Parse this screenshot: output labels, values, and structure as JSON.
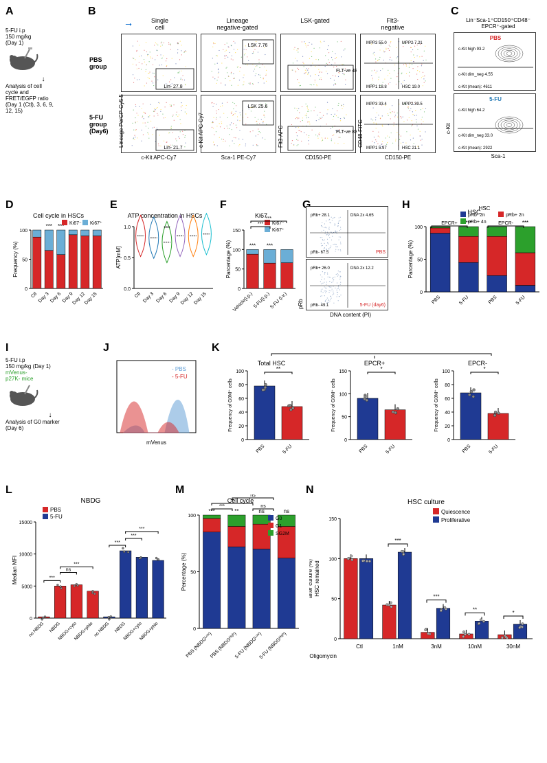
{
  "panelA": {
    "label": "A",
    "treatment": "5-FU i.p\n150 mg/kg\n(Day 1)",
    "analysis": "Analysis of cell\ncycle and\nFRET/EGFP ratio\n(Day 1 (Ctl), 3, 6, 9,\n12, 15)"
  },
  "panelB": {
    "label": "B",
    "headers": [
      "Single\ncell",
      "Lineage\nnegative-gated",
      "LSK-gated",
      "Flt3-\nnegative"
    ],
    "group1": "PBS\ngroup",
    "group2": "5-FU\ngroup\n(Day6)",
    "yaxes": [
      "Lineage PerCP-Cy5.5",
      "c-Kit APC-Cy7",
      "Flt3-APC",
      "CD48-FITC"
    ],
    "xaxes": [
      "c-Kit APC-Cy7",
      "Sca-1 PE-Cy7",
      "CD150-PE",
      "CD150-PE"
    ],
    "gates_pbs": [
      {
        "lin_neg": "Lin-\n27.8"
      },
      {
        "lsk": "LSK\n7.76"
      },
      {
        "flt_ve": "FLT-ve\n48.5"
      },
      {
        "mpp3": "MPP3\n55.0",
        "mpp2": "MPP2\n7.21",
        "mpp1": "MPP1\n18.8",
        "hsc": "HSC\n19.0"
      }
    ],
    "gates_5fu": [
      {
        "lin_neg": "Lin-\n21.7"
      },
      {
        "lsk": "LSK\n25.6"
      },
      {
        "flt_ve": "FLT-ve\n83.7"
      },
      {
        "mpp3": "MPP3\n33.4",
        "mpp2": "MPP2\n39.5",
        "mpp1": "MPP1\n5.97",
        "hsc": "HSC\n21.1"
      }
    ]
  },
  "panelC": {
    "label": "C",
    "title": "Lin⁻Sca-1⁺CD150⁺CD48⁻\nEPCR⁺-gated",
    "yaxis": "c-Kit",
    "xaxis": "Sca-1",
    "pbs": {
      "label": "PBS",
      "high": "c-Kit high\n93.2",
      "dim": "c-Kit dim_neg\n4.55",
      "mean": "c-Kit (mean): 4611"
    },
    "fu": {
      "label": "5-FU",
      "high": "c-Kit high\n64.2",
      "dim": "c-Kit dim_neg\n33.0",
      "mean": "c-Kit (mean): 2922"
    }
  },
  "panelD": {
    "label": "D",
    "title": "Cell cycle in HSCs",
    "ylabel": "Frequency (%)",
    "categories": [
      "Ctl",
      "Day 3",
      "Day 6",
      "Day 9",
      "Day 12",
      "Day 15"
    ],
    "ki67_neg": [
      88,
      65,
      58,
      92,
      90,
      90
    ],
    "ki67_pos": [
      12,
      35,
      42,
      8,
      10,
      10
    ],
    "colors": {
      "neg": "#d62728",
      "pos": "#6baed6"
    },
    "legend": [
      "Ki67⁻",
      "Ki67⁺"
    ],
    "ylim": [
      0,
      100
    ],
    "ytick_step": 50,
    "sig": [
      "",
      "***",
      "***",
      "",
      "",
      ""
    ]
  },
  "panelE": {
    "label": "E",
    "title": "ATP concentration in HSCs",
    "ylabel": "ATP[mM]",
    "categories": [
      "Ctl",
      "Day 3",
      "Day 6",
      "Day 9",
      "Day 12",
      "Day 15"
    ],
    "medians": [
      0.85,
      0.82,
      0.75,
      0.85,
      0.85,
      0.88
    ],
    "colors": [
      "#d62728",
      "#1f77b4",
      "#2ca02c",
      "#9467bd",
      "#ff7f0e",
      "#17becf"
    ],
    "ylim": [
      0,
      1.0
    ],
    "ytick_step": 0.5,
    "sig_pos": 2,
    "sig": "***"
  },
  "panelF": {
    "label": "F",
    "title": "Ki67",
    "ylabel": "Parcentage (%)",
    "categories": [
      "Vehicle(i.p.)",
      "5-FU(i.p.)",
      "5-FU (i.v.)"
    ],
    "ki67_neg": [
      88,
      65,
      66
    ],
    "ki67_pos": [
      12,
      35,
      34
    ],
    "colors": {
      "neg": "#d62728",
      "pos": "#6baed6"
    },
    "legend": [
      "Ki67⁻",
      "Ki67⁺"
    ],
    "ylim": [
      0,
      150
    ],
    "ytick_step": 50,
    "sig": [
      "***",
      "***"
    ]
  },
  "panelG": {
    "label": "G",
    "yaxis": "pRb",
    "xaxis": "DNA content (PI)",
    "pbs": {
      "label": "PBS",
      "prb_pos": "pRb+\n28.1",
      "dna2x": "DNA 2x\n4.65",
      "prb_neg": "pRb-\n67.5"
    },
    "fu": {
      "label": "5-FU (day6)",
      "prb_pos": "pRb+\n26.0",
      "dna2x": "DNA 2x\n12.2",
      "prb_neg": "pRb-\n49.1"
    }
  },
  "panelH": {
    "label": "H",
    "title": "HSC",
    "ylabel": "Parcentage (%)",
    "group_labels": [
      "EPCR+",
      "EPCR-"
    ],
    "categories": [
      "PBS",
      "5-FU",
      "PBS",
      "5-FU"
    ],
    "prb_neg_2n": [
      90,
      45,
      25,
      10
    ],
    "prb_pos_2n": [
      8,
      40,
      60,
      50
    ],
    "prb_pos_4n": [
      2,
      15,
      15,
      40
    ],
    "colors": {
      "neg2n": "#1f3a93",
      "pos2n": "#d62728",
      "pos4n": "#2ca02c"
    },
    "legend": [
      "pRb- 2n",
      "pRb+ 2n",
      "pRb+ 4n"
    ],
    "ylim": [
      0,
      100
    ],
    "ytick_step": 50,
    "sig": [
      "",
      "***",
      "",
      "***"
    ]
  },
  "panelI": {
    "label": "I",
    "treatment": "5-FU i.p\n150 mg/kg (Day 1)",
    "mouse_label": "mVenus-\np27K- mice",
    "mouse_color": "#2ca02c",
    "analysis": "Analysis of G0 marker\n(Day 6)"
  },
  "panelJ": {
    "label": "J",
    "xaxis": "mVenus",
    "legend": [
      "PBS",
      "5-FU"
    ],
    "colors": [
      "#5b9bd5",
      "#d62728"
    ]
  },
  "panelK": {
    "label": "K",
    "titles": [
      "Total HSC",
      "EPCR+",
      "EPCR-"
    ],
    "ylabel": "Frequency of G0M⁺ cells",
    "categories": [
      "PBS",
      "5-FU"
    ],
    "data": [
      {
        "pbs": 78,
        "fu": 48,
        "sig": "**",
        "ylim": [
          0,
          100
        ],
        "ystep": 20
      },
      {
        "pbs": 90,
        "fu": 65,
        "sig": "*",
        "ylim": [
          0,
          150
        ],
        "ystep": 50
      },
      {
        "pbs": 68,
        "fu": 38,
        "sig": "*",
        "ylim": [
          0,
          100
        ],
        "ystep": 20
      }
    ],
    "colors": {
      "pbs": "#1f3a93",
      "fu": "#d62728"
    }
  },
  "panelL": {
    "label": "L",
    "title": "NBDG",
    "ylabel": "Median MFI",
    "categories": [
      "no NBDG",
      "NBDG",
      "NBDG+cyto",
      "NBDG+phlo",
      "no NBDG",
      "NBDG",
      "NBDG+cyto",
      "NBDG+phlo"
    ],
    "values": [
      200,
      5000,
      5200,
      4200,
      200,
      10500,
      9500,
      9000
    ],
    "group_colors": [
      "#d62728",
      "#d62728",
      "#d62728",
      "#d62728",
      "#1f3a93",
      "#1f3a93",
      "#1f3a93",
      "#1f3a93"
    ],
    "legend": [
      "PBS",
      "5-FU"
    ],
    "legend_colors": [
      "#d62728",
      "#1f3a93"
    ],
    "ylim": [
      0,
      15000
    ],
    "ytick_step": 5000,
    "sig_brackets": [
      {
        "from": 0,
        "to": 1,
        "label": "***"
      },
      {
        "from": 1,
        "to": 2,
        "label": "ns"
      },
      {
        "from": 1,
        "to": 3,
        "label": "***"
      },
      {
        "from": 4,
        "to": 5,
        "label": "***"
      },
      {
        "from": 5,
        "to": 6,
        "label": "***"
      },
      {
        "from": 5,
        "to": 7,
        "label": "***"
      }
    ]
  },
  "panelM": {
    "label": "M",
    "title": "Cell cycle",
    "ylabel": "Percentage (%)",
    "categories": [
      "PBS (NBDGᴸᵒʷ)",
      "PBS (NBDGᴴⁱᵍʰ)",
      "5-FU (NBDGᴸᵒʷ)",
      "5-FU (NBDGᴴⁱᵍʰ)"
    ],
    "g0": [
      85,
      72,
      70,
      62
    ],
    "g1": [
      12,
      18,
      22,
      28
    ],
    "sg2m": [
      3,
      10,
      8,
      10
    ],
    "colors": {
      "g0": "#1f3a93",
      "g1": "#d62728",
      "sg2m": "#2ca02c"
    },
    "legend": [
      "G0",
      "G1",
      "SG2M"
    ],
    "ylim": [
      0,
      100
    ],
    "ytick_step": 50,
    "sig": [
      "***",
      "**",
      "ns",
      "ns"
    ]
  },
  "panelN": {
    "label": "N",
    "title": "HSC culture",
    "ylabel": "HSC remained\nafter culture (%)",
    "xlabel": "Oligomycin",
    "categories": [
      "Ctl",
      "1nM",
      "3nM",
      "10nM",
      "30nM"
    ],
    "quiescence": [
      100,
      42,
      8,
      6,
      5
    ],
    "proliferative": [
      100,
      108,
      38,
      22,
      18
    ],
    "colors": {
      "q": "#d62728",
      "p": "#1f3a93"
    },
    "legend": [
      "Quiescence",
      "Proliferative"
    ],
    "ylim": [
      0,
      150
    ],
    "ytick_step": 50,
    "sig": [
      "",
      "***",
      "***",
      "**",
      "*"
    ]
  }
}
